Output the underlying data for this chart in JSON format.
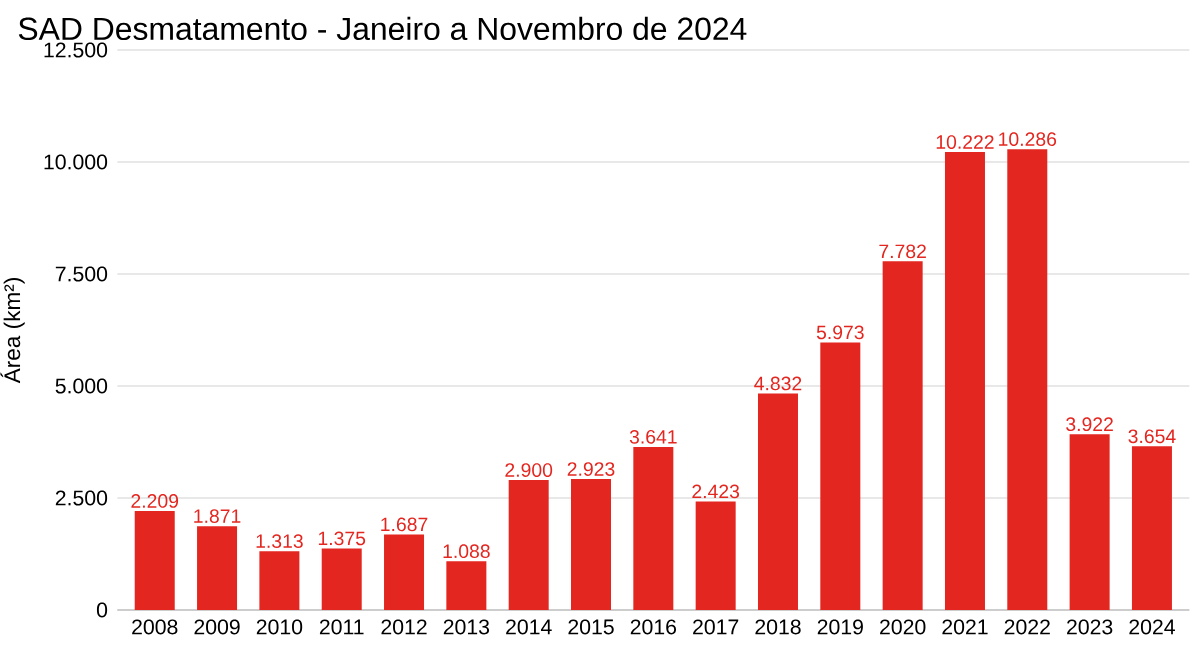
{
  "chart_data": {
    "type": "bar",
    "title": "SAD Desmatamento - Janeiro a Novembro de 2024",
    "ylabel": "Área (km²)",
    "categories": [
      "2008",
      "2009",
      "2010",
      "2011",
      "2012",
      "2013",
      "2014",
      "2015",
      "2016",
      "2017",
      "2018",
      "2019",
      "2020",
      "2021",
      "2022",
      "2023",
      "2024"
    ],
    "values": [
      2209,
      1871,
      1313,
      1375,
      1687,
      1088,
      2900,
      2923,
      3641,
      2423,
      4832,
      5973,
      7782,
      10222,
      10286,
      3922,
      3654
    ],
    "value_labels": [
      "2.209",
      "1.871",
      "1.313",
      "1.375",
      "1.687",
      "1.088",
      "2.900",
      "2.923",
      "3.641",
      "2.423",
      "4.832",
      "5.973",
      "7.782",
      "10.222",
      "10.286",
      "3.922",
      "3.654"
    ],
    "color": "#e3261f",
    "ylim": [
      0,
      12500
    ],
    "yticks": [
      {
        "value": 0,
        "label": "0"
      },
      {
        "value": 2500,
        "label": "2.500"
      },
      {
        "value": 5000,
        "label": "5.000"
      },
      {
        "value": 7500,
        "label": "7.500"
      },
      {
        "value": 10000,
        "label": "10.000"
      },
      {
        "value": 12500,
        "label": "12.500"
      }
    ],
    "grid": "y"
  }
}
